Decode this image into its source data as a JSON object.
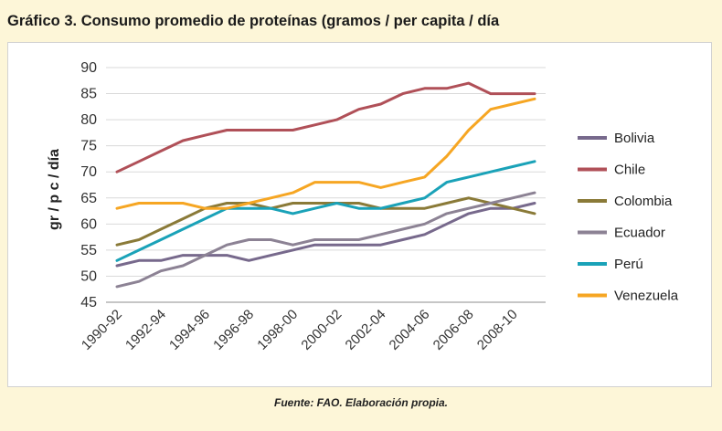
{
  "title": "Gráfico 3. Consumo promedio de proteínas (gramos / per capita / día",
  "source": "Fuente: FAO. Elaboración propia.",
  "chart_data": {
    "type": "line",
    "ylabel": "gr / p c / día",
    "ylim": [
      45,
      90
    ],
    "yticks": [
      45,
      50,
      55,
      60,
      65,
      70,
      75,
      80,
      85,
      90
    ],
    "grid": true,
    "legend_position": "right",
    "x": [
      "1990-92",
      "1991-93",
      "1992-94",
      "1993-95",
      "1994-96",
      "1995-97",
      "1996-98",
      "1997-99",
      "1998-00",
      "1999-01",
      "2000-02",
      "2001-03",
      "2002-04",
      "2003-05",
      "2004-06",
      "2005-07",
      "2006-08",
      "2007-09",
      "2008-10",
      "2009-11"
    ],
    "x_tick_labels": [
      "1990-92",
      "1992-94",
      "1994-96",
      "1996-98",
      "1998-00",
      "2000-02",
      "2002-04",
      "2004-06",
      "2006-08",
      "2008-10"
    ],
    "series": [
      {
        "name": "Bolivia",
        "color": "#77698c",
        "values": [
          52,
          53,
          53,
          54,
          54,
          54,
          53,
          54,
          55,
          56,
          56,
          56,
          56,
          57,
          58,
          60,
          62,
          63,
          63,
          64
        ]
      },
      {
        "name": "Chile",
        "color": "#b05058",
        "values": [
          70,
          72,
          74,
          76,
          77,
          78,
          78,
          78,
          78,
          79,
          80,
          82,
          83,
          85,
          86,
          86,
          87,
          85,
          85,
          85
        ]
      },
      {
        "name": "Colombia",
        "color": "#8a7a38",
        "values": [
          56,
          57,
          59,
          61,
          63,
          64,
          64,
          63,
          64,
          64,
          64,
          64,
          63,
          63,
          63,
          64,
          65,
          64,
          63,
          62
        ]
      },
      {
        "name": "Ecuador",
        "color": "#8c8294",
        "values": [
          48,
          49,
          51,
          52,
          54,
          56,
          57,
          57,
          56,
          57,
          57,
          57,
          58,
          59,
          60,
          62,
          63,
          64,
          65,
          66
        ]
      },
      {
        "name": "Perú",
        "color": "#1aa2b8",
        "values": [
          53,
          55,
          57,
          59,
          61,
          63,
          63,
          63,
          62,
          63,
          64,
          63,
          63,
          64,
          65,
          68,
          69,
          70,
          71,
          72
        ]
      },
      {
        "name": "Venezuela",
        "color": "#f6a623",
        "values": [
          63,
          64,
          64,
          64,
          63,
          63,
          64,
          65,
          66,
          68,
          68,
          68,
          67,
          68,
          69,
          73,
          78,
          82,
          83,
          84
        ]
      }
    ]
  }
}
